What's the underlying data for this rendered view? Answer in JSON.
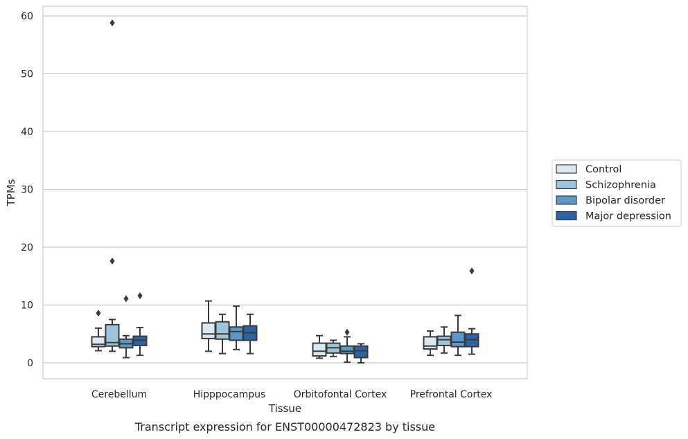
{
  "caption": "Transcript expression for ENST00000472823 by tissue",
  "chart_data": {
    "type": "box",
    "title": "",
    "xlabel": "Tissue",
    "ylabel": "TPMs",
    "ylim": [
      -2.8,
      62
    ],
    "yticks": [
      0,
      10,
      20,
      30,
      40,
      50,
      60
    ],
    "grid": "horizontal",
    "legend_position": "right",
    "categories": [
      "Cerebellum",
      "Hipppocampus",
      "Orbitofontal Cortex",
      "Prefrontal Cortex"
    ],
    "series": [
      {
        "name": "Control",
        "color": "#dae8f4",
        "boxes": [
          {
            "whisker_low": 2.1,
            "q1": 2.8,
            "median": 3.2,
            "q3": 4.5,
            "whisker_high": 6.0,
            "outliers": [
              8.6
            ]
          },
          {
            "whisker_low": 2.0,
            "q1": 4.2,
            "median": 5.0,
            "q3": 6.9,
            "whisker_high": 10.7,
            "outliers": []
          },
          {
            "whisker_low": 0.8,
            "q1": 1.2,
            "median": 2.0,
            "q3": 3.4,
            "whisker_high": 4.7,
            "outliers": []
          },
          {
            "whisker_low": 1.3,
            "q1": 2.4,
            "median": 2.9,
            "q3": 4.5,
            "whisker_high": 5.5,
            "outliers": []
          }
        ]
      },
      {
        "name": "Schizophrenia",
        "color": "#9fc5dc",
        "boxes": [
          {
            "whisker_low": 2.0,
            "q1": 2.9,
            "median": 3.5,
            "q3": 6.6,
            "whisker_high": 7.5,
            "outliers": [
              17.6,
              58.8
            ]
          },
          {
            "whisker_low": 1.6,
            "q1": 4.1,
            "median": 5.0,
            "q3": 7.1,
            "whisker_high": 8.4,
            "outliers": []
          },
          {
            "whisker_low": 1.1,
            "q1": 1.7,
            "median": 2.6,
            "q3": 3.4,
            "whisker_high": 3.9,
            "outliers": []
          },
          {
            "whisker_low": 1.7,
            "q1": 3.0,
            "median": 4.0,
            "q3": 4.6,
            "whisker_high": 6.2,
            "outliers": []
          }
        ]
      },
      {
        "name": "Bipolar disorder",
        "color": "#5a99c7",
        "boxes": [
          {
            "whisker_low": 0.9,
            "q1": 2.6,
            "median": 3.3,
            "q3": 4.1,
            "whisker_high": 4.7,
            "outliers": [
              11.1
            ]
          },
          {
            "whisker_low": 2.3,
            "q1": 3.9,
            "median": 5.4,
            "q3": 6.2,
            "whisker_high": 9.8,
            "outliers": []
          },
          {
            "whisker_low": 0.1,
            "q1": 1.6,
            "median": 2.0,
            "q3": 2.9,
            "whisker_high": 4.5,
            "outliers": [
              5.3
            ]
          },
          {
            "whisker_low": 1.3,
            "q1": 2.8,
            "median": 3.6,
            "q3": 5.3,
            "whisker_high": 8.2,
            "outliers": []
          }
        ]
      },
      {
        "name": "Major depression",
        "color": "#2765a8",
        "boxes": [
          {
            "whisker_low": 1.3,
            "q1": 3.0,
            "median": 3.9,
            "q3": 4.6,
            "whisker_high": 6.1,
            "outliers": [
              11.6
            ]
          },
          {
            "whisker_low": 1.6,
            "q1": 3.9,
            "median": 5.2,
            "q3": 6.4,
            "whisker_high": 8.4,
            "outliers": []
          },
          {
            "whisker_low": 0.0,
            "q1": 0.9,
            "median": 2.1,
            "q3": 2.9,
            "whisker_high": 3.3,
            "outliers": []
          },
          {
            "whisker_low": 1.5,
            "q1": 2.8,
            "median": 4.0,
            "q3": 5.0,
            "whisker_high": 5.9,
            "outliers": [
              15.9
            ]
          }
        ]
      }
    ]
  }
}
